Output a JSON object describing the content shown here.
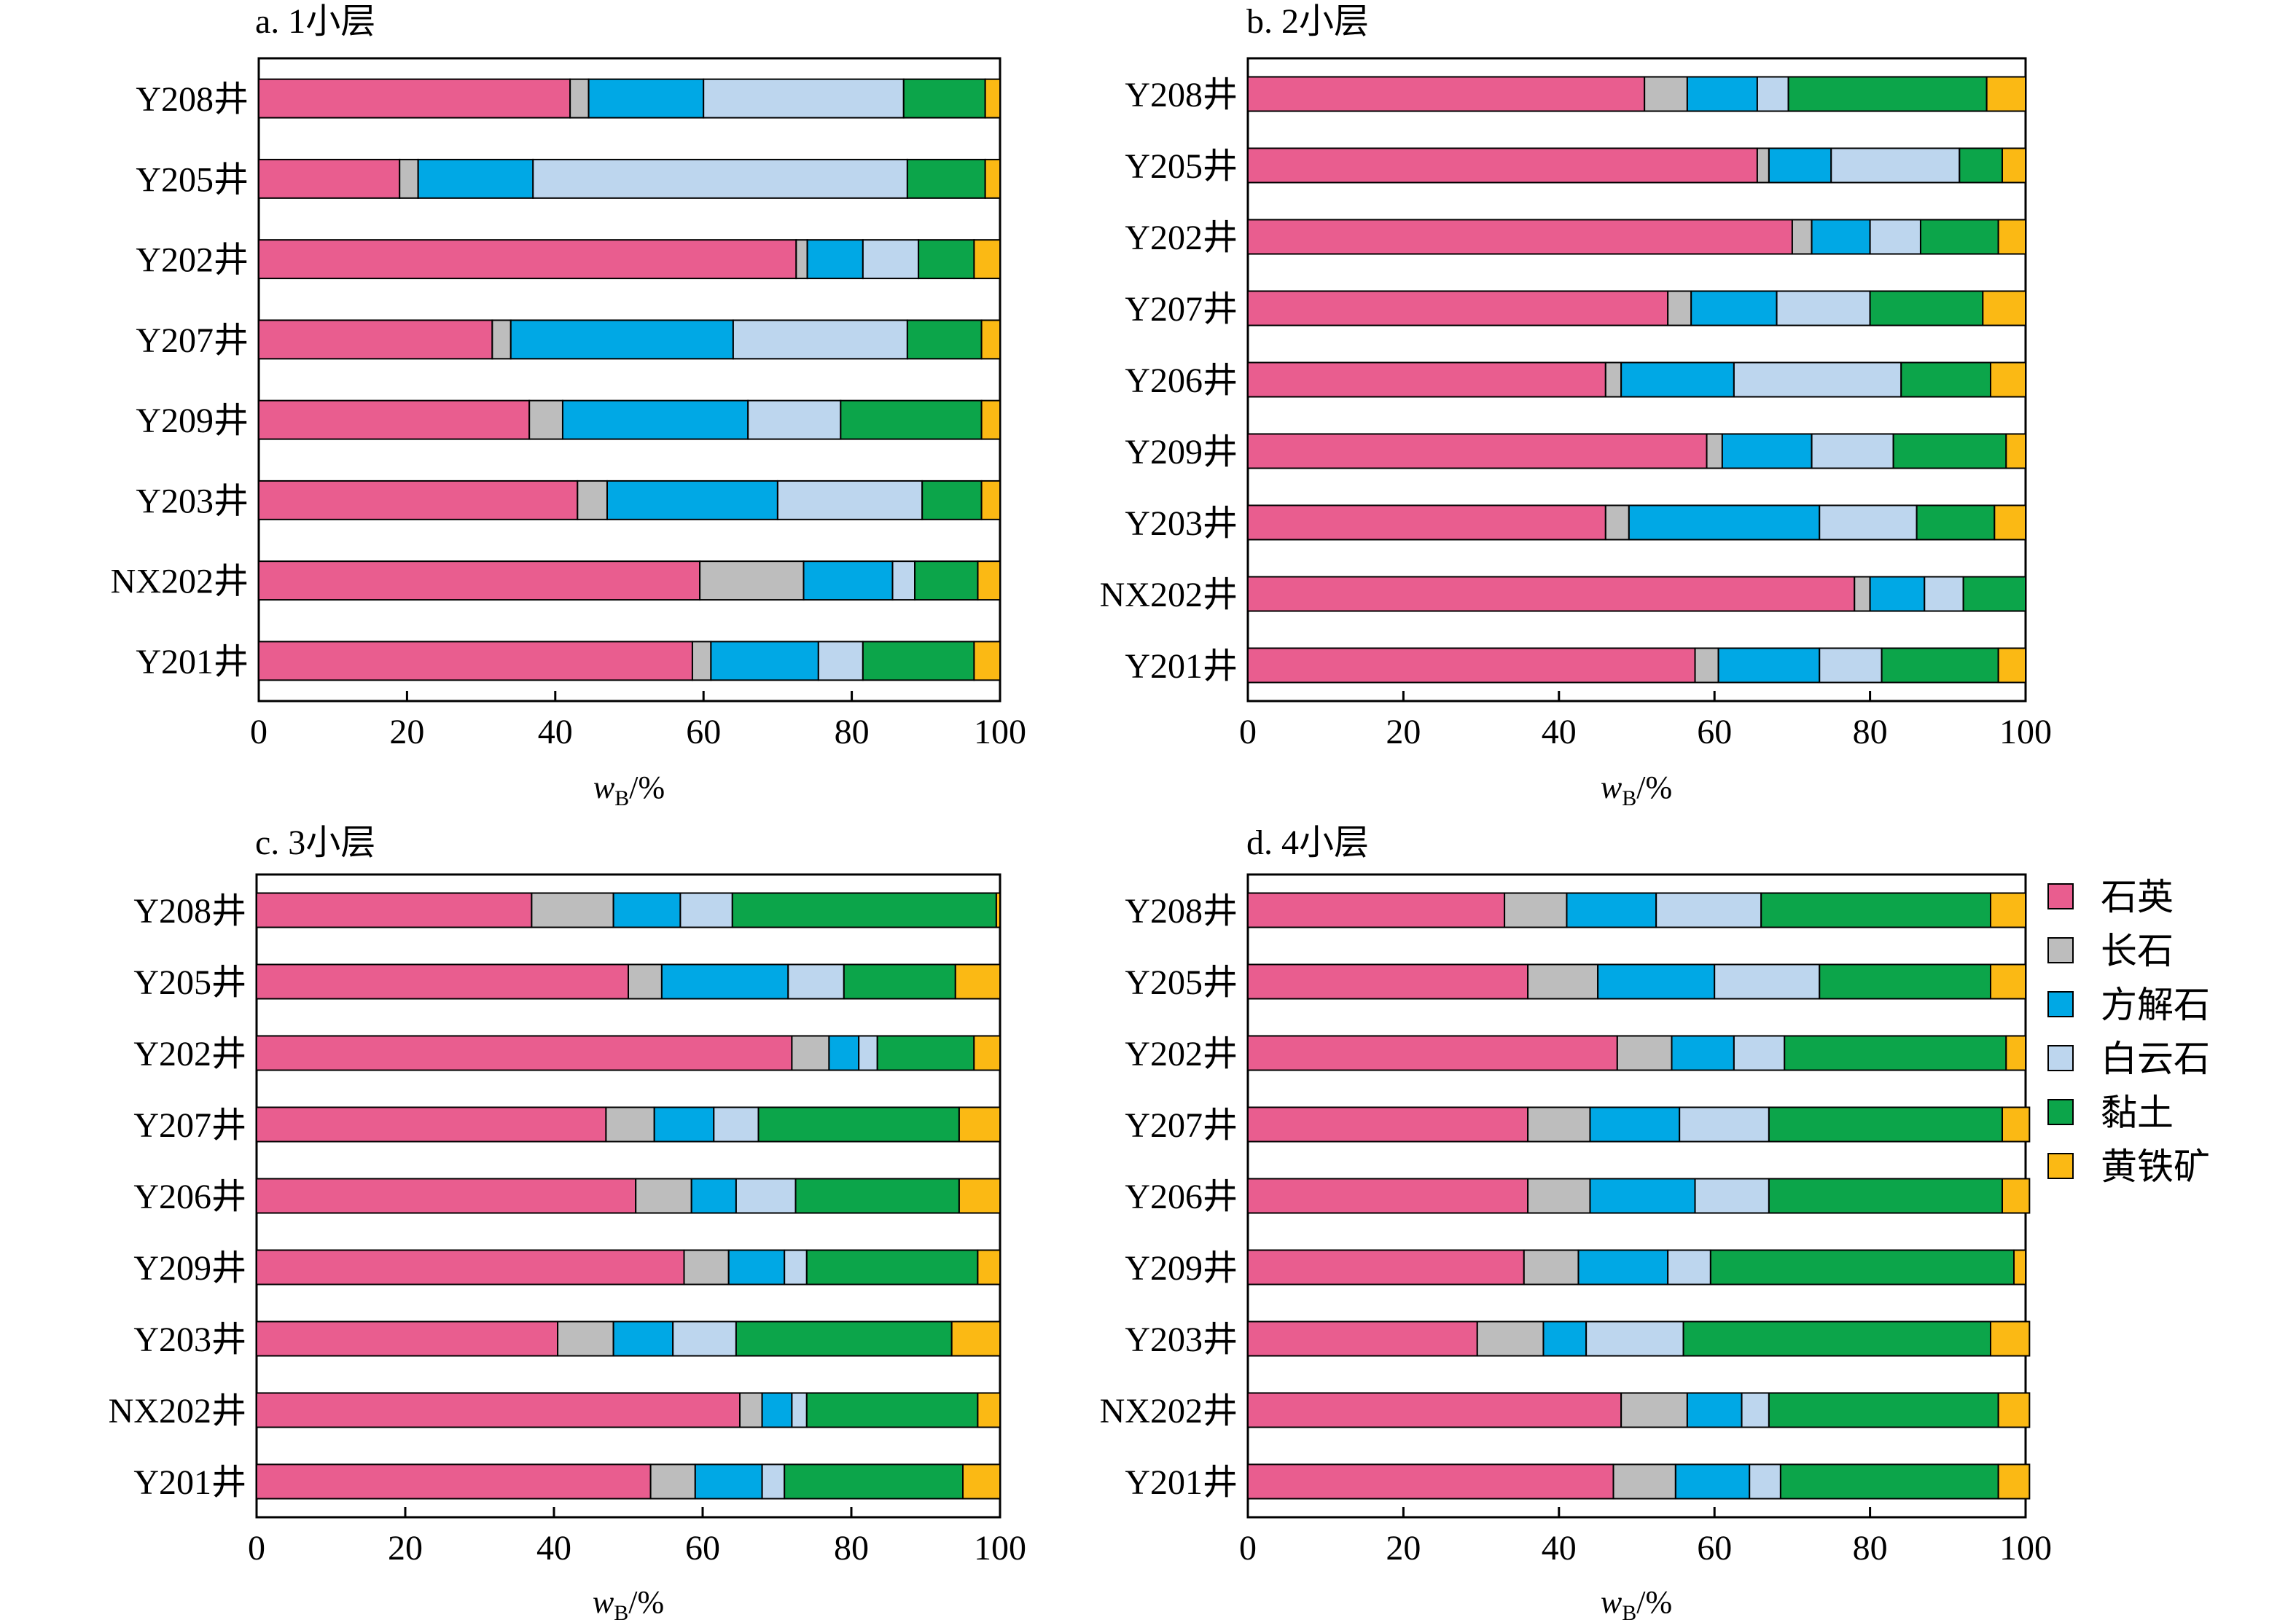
{
  "colors": {
    "石英": "#e95d8f",
    "长石": "#bdbdbd",
    "方解石": "#00a8e5",
    "白云石": "#bdd6ee",
    "黏土": "#0ca54a",
    "黄铁矿": "#fbb914"
  },
  "legend": {
    "items": [
      "石英",
      "长石",
      "方解石",
      "白云石",
      "黏土",
      "黄铁矿"
    ]
  },
  "chart_data": [
    {
      "type": "bar",
      "orientation": "horizontal",
      "stacked": true,
      "title": "a. 1小层",
      "xlabel": {
        "main": "w",
        "sub": "B",
        "suffix": "/%"
      },
      "xlim": [
        0,
        100
      ],
      "xticks": [
        0,
        20,
        40,
        60,
        80,
        100
      ],
      "categories": [
        "Y208井",
        "Y205井",
        "Y202井",
        "Y207井",
        "Y209井",
        "Y203井",
        "NX202井",
        "Y201井"
      ],
      "series": [
        {
          "name": "石英",
          "values": [
            42,
            19,
            72.5,
            31.5,
            36.5,
            43,
            59.5,
            58.5
          ]
        },
        {
          "name": "长石",
          "values": [
            2.5,
            2.5,
            1.5,
            2.5,
            4.5,
            4,
            14,
            2.5
          ]
        },
        {
          "name": "方解石",
          "values": [
            15.5,
            15.5,
            7.5,
            30,
            25,
            23,
            12,
            14.5
          ]
        },
        {
          "name": "白云石",
          "values": [
            27,
            50.5,
            7.5,
            23.5,
            12.5,
            19.5,
            3,
            6
          ]
        },
        {
          "name": "黏土",
          "values": [
            11,
            10.5,
            7.5,
            10,
            19,
            8,
            8.5,
            15
          ]
        },
        {
          "name": "黄铁矿",
          "values": [
            2,
            2,
            3.5,
            2.5,
            2.5,
            2.5,
            3,
            3.5
          ]
        }
      ]
    },
    {
      "type": "bar",
      "orientation": "horizontal",
      "stacked": true,
      "title": "b. 2小层",
      "xlabel": {
        "main": "w",
        "sub": "B",
        "suffix": "/%"
      },
      "xlim": [
        0,
        100
      ],
      "xticks": [
        0,
        20,
        40,
        60,
        80,
        100
      ],
      "categories": [
        "Y208井",
        "Y205井",
        "Y202井",
        "Y207井",
        "Y206井",
        "Y209井",
        "Y203井",
        "NX202井",
        "Y201井"
      ],
      "series": [
        {
          "name": "石英",
          "values": [
            51,
            65.5,
            70,
            54,
            46,
            59,
            46,
            78,
            57.5
          ]
        },
        {
          "name": "长石",
          "values": [
            5.5,
            1.5,
            2.5,
            3,
            2,
            2,
            3,
            2,
            3
          ]
        },
        {
          "name": "方解石",
          "values": [
            9,
            8,
            7.5,
            11,
            14.5,
            11.5,
            24.5,
            7,
            13
          ]
        },
        {
          "name": "白云石",
          "values": [
            4,
            16.5,
            6.5,
            12,
            21.5,
            10.5,
            12.5,
            5,
            8
          ]
        },
        {
          "name": "黏土",
          "values": [
            25.5,
            5.5,
            10,
            14.5,
            11.5,
            14.5,
            10,
            8,
            15
          ]
        },
        {
          "name": "黄铁矿",
          "values": [
            5,
            3,
            3.5,
            5.5,
            4.5,
            2.5,
            4,
            0,
            3.5
          ]
        }
      ]
    },
    {
      "type": "bar",
      "orientation": "horizontal",
      "stacked": true,
      "title": "c. 3小层",
      "xlabel": {
        "main": "w",
        "sub": "B",
        "suffix": "/%"
      },
      "xlim": [
        0,
        100
      ],
      "xticks": [
        0,
        20,
        40,
        60,
        80,
        100
      ],
      "categories": [
        "Y208井",
        "Y205井",
        "Y202井",
        "Y207井",
        "Y206井",
        "Y209井",
        "Y203井",
        "NX202井",
        "Y201井"
      ],
      "series": [
        {
          "name": "石英",
          "values": [
            37,
            50,
            72,
            47,
            51,
            57.5,
            40.5,
            65,
            53
          ]
        },
        {
          "name": "长石",
          "values": [
            11,
            4.5,
            5,
            6.5,
            7.5,
            6,
            7.5,
            3,
            6
          ]
        },
        {
          "name": "方解石",
          "values": [
            9,
            17,
            4,
            8,
            6,
            7.5,
            8,
            4,
            9
          ]
        },
        {
          "name": "白云石",
          "values": [
            7,
            7.5,
            2.5,
            6,
            8,
            3,
            8.5,
            2,
            3
          ]
        },
        {
          "name": "黏土",
          "values": [
            35.5,
            15,
            13,
            27,
            22,
            23,
            29,
            23,
            24
          ]
        },
        {
          "name": "黄铁矿",
          "values": [
            0.5,
            6,
            3.5,
            5.5,
            5.5,
            3,
            6.5,
            3,
            5
          ]
        }
      ]
    },
    {
      "type": "bar",
      "orientation": "horizontal",
      "stacked": true,
      "title": "d. 4小层",
      "xlabel": {
        "main": "w",
        "sub": "B",
        "suffix": "/%"
      },
      "xlim": [
        0,
        100
      ],
      "xticks": [
        0,
        20,
        40,
        60,
        80,
        100
      ],
      "categories": [
        "Y208井",
        "Y205井",
        "Y202井",
        "Y207井",
        "Y206井",
        "Y209井",
        "Y203井",
        "NX202井",
        "Y201井"
      ],
      "series": [
        {
          "name": "石英",
          "values": [
            33,
            36,
            47.5,
            36,
            36,
            35.5,
            29.5,
            48,
            47
          ]
        },
        {
          "name": "长石",
          "values": [
            8,
            9,
            7,
            8,
            8,
            7,
            8.5,
            8.5,
            8
          ]
        },
        {
          "name": "方解石",
          "values": [
            11.5,
            15,
            8,
            11.5,
            13.5,
            11.5,
            5.5,
            7,
            9.5
          ]
        },
        {
          "name": "白云石",
          "values": [
            13.5,
            13.5,
            6.5,
            11.5,
            9.5,
            5.5,
            12.5,
            3.5,
            4
          ]
        },
        {
          "name": "黏土",
          "values": [
            29.5,
            22,
            28.5,
            30,
            30,
            39,
            39.5,
            29.5,
            28
          ]
        },
        {
          "name": "黄铁矿",
          "values": [
            4.5,
            4.5,
            2.5,
            3.5,
            3.5,
            1.5,
            5,
            4,
            4
          ]
        }
      ]
    }
  ]
}
